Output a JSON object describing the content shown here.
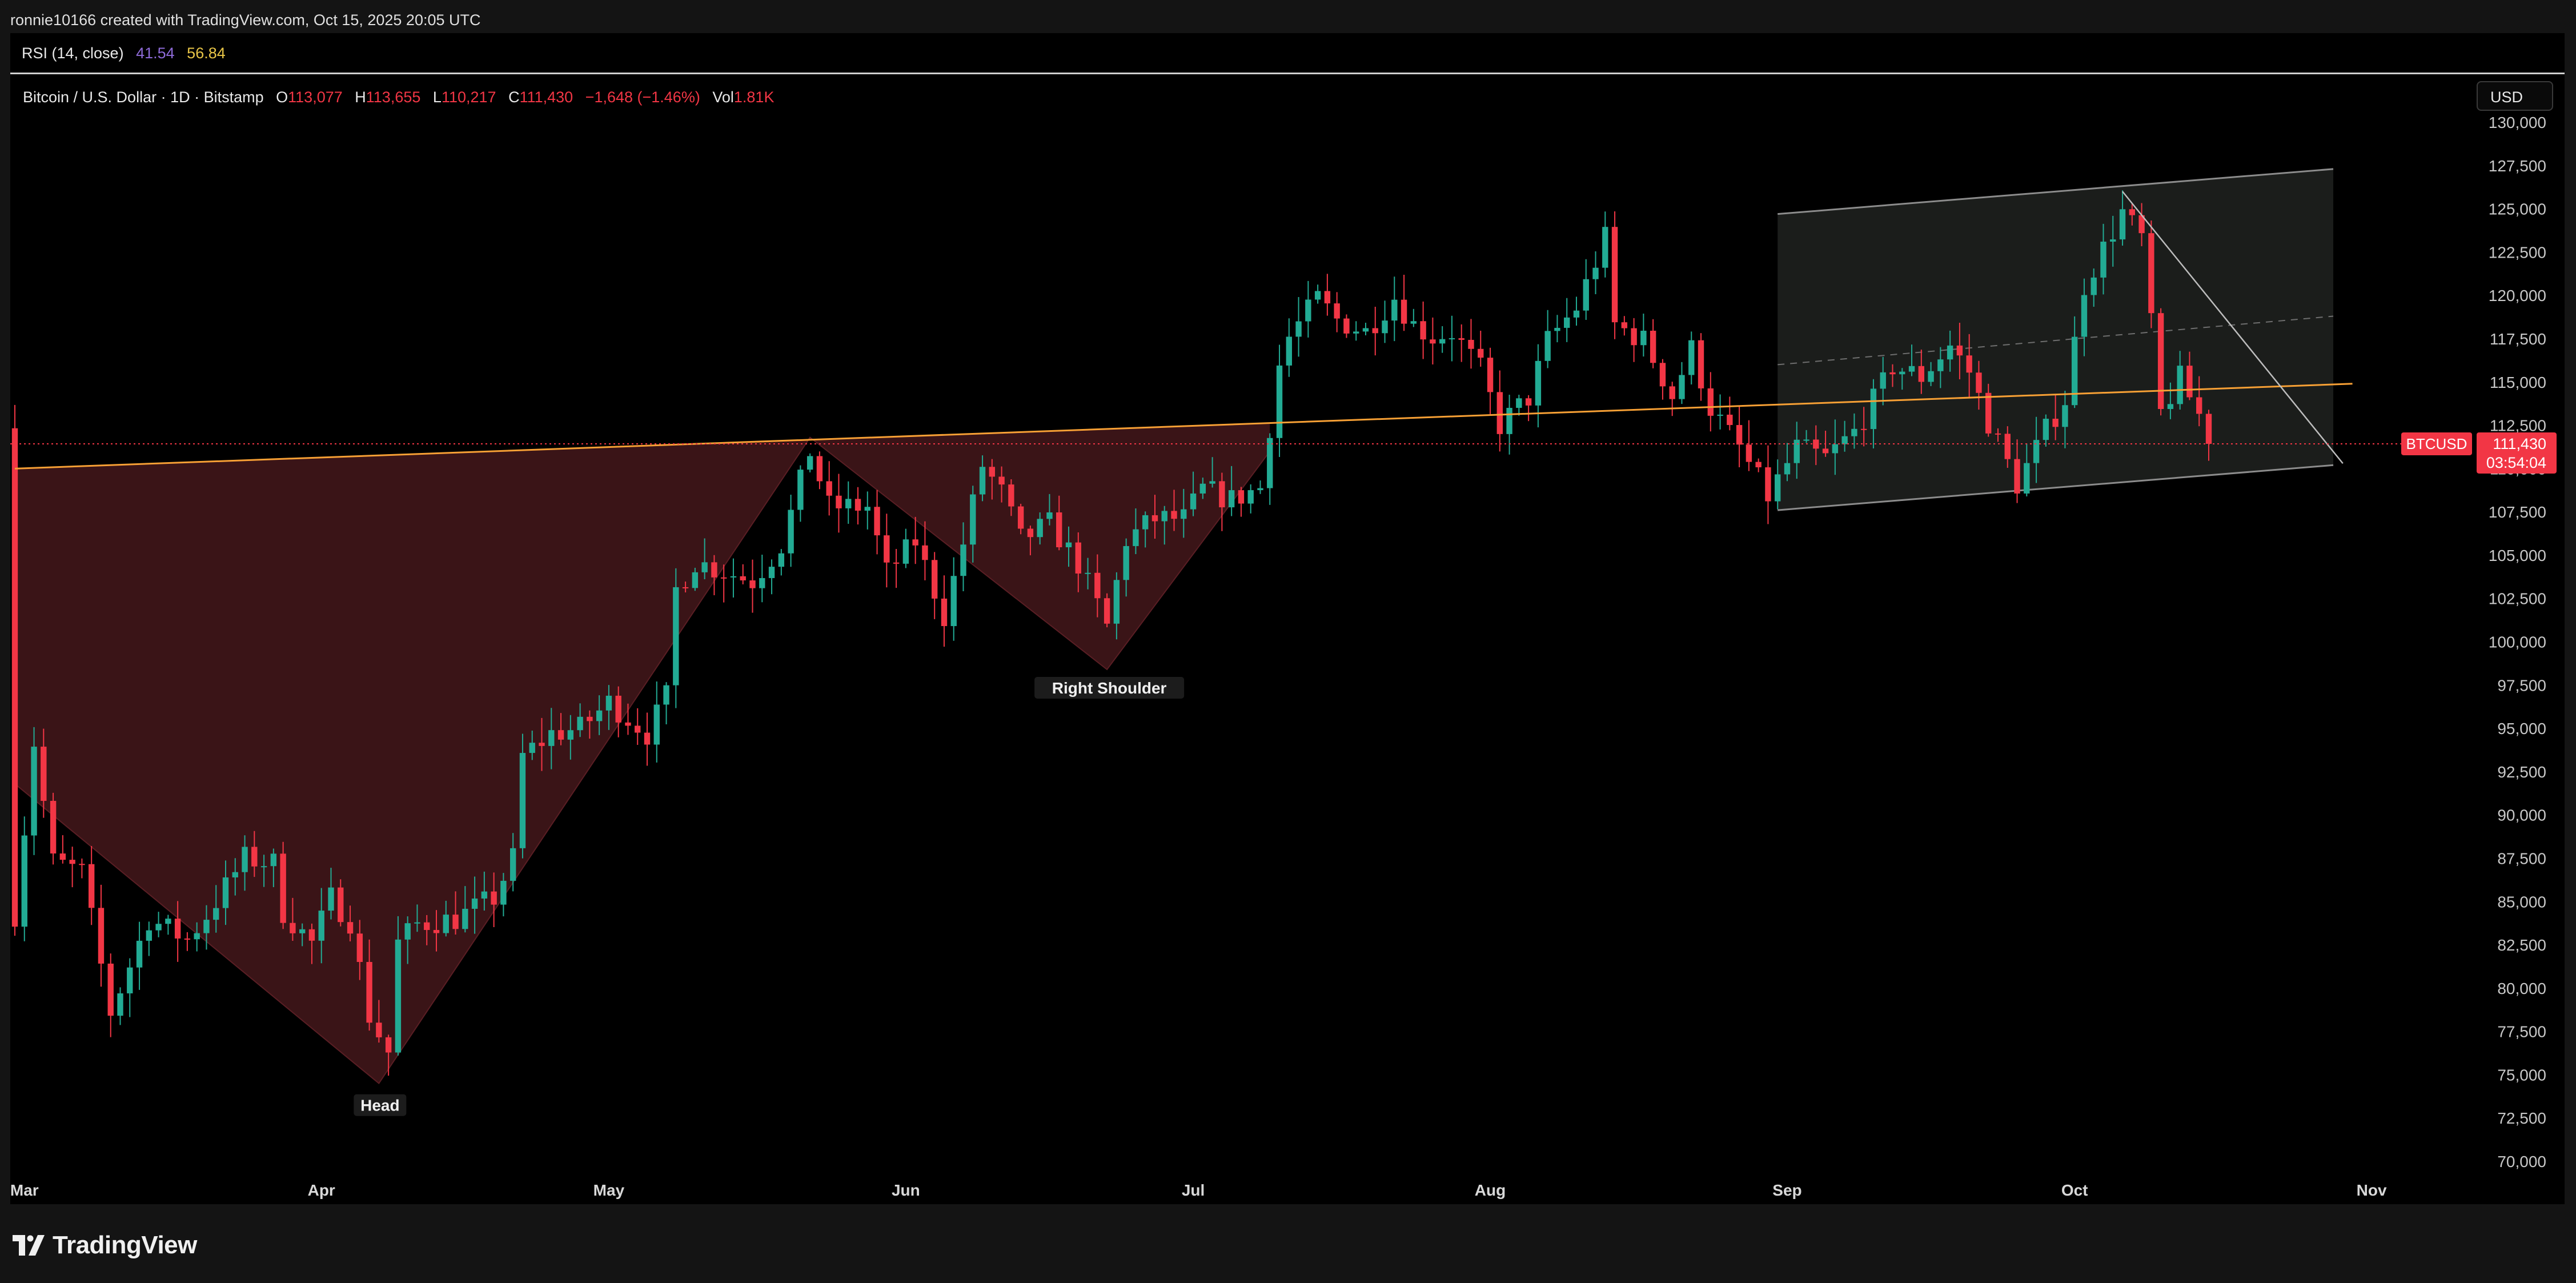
{
  "header": {
    "credit": "ronnie10166 created with TradingView.com, Oct 15, 2025 20:05 UTC"
  },
  "rsi": {
    "name": "RSI (14, close)",
    "value1": "41.54",
    "value2": "56.84"
  },
  "legend": {
    "symbol": "Bitcoin / U.S. Dollar · 1D · Bitstamp",
    "o_label": "O",
    "o_value": "113,077",
    "h_label": "H",
    "h_value": "113,655",
    "l_label": "L",
    "l_value": "110,217",
    "c_label": "C",
    "c_value": "111,430",
    "change": "−1,648 (−1.46%)",
    "vol_label": "Vol",
    "vol_value": "1.81K"
  },
  "currency_button": "USD",
  "price_tag": {
    "symbol": "BTCUSD",
    "price": "111,430",
    "countdown": "03:54:04"
  },
  "annotations": {
    "head": "Head",
    "right_shoulder": "Right Shoulder"
  },
  "brand": {
    "name": "TradingView"
  },
  "colors": {
    "up": "#22ab94",
    "down": "#f23645",
    "neckline": "#f7a035",
    "pattern_fill": "#3a1417",
    "channel_fill": "#1b1d1b",
    "background": "#000000"
  },
  "chart_data": {
    "type": "candlestick",
    "symbol": "BTCUSD",
    "interval": "1D",
    "y_ticks": [
      70000,
      72500,
      75000,
      77500,
      80000,
      82500,
      85000,
      87500,
      90000,
      92500,
      95000,
      97500,
      100000,
      102500,
      105000,
      107500,
      110000,
      112500,
      115000,
      117500,
      120000,
      122500,
      125000,
      127500,
      130000
    ],
    "x_ticks": [
      "Mar",
      "Apr",
      "May",
      "Jun",
      "Jul",
      "Aug",
      "Sep",
      "Oct",
      "Nov"
    ],
    "x_range": [
      "2025-02-28",
      "2025-11-06"
    ],
    "ylim": [
      68500,
      130500
    ],
    "last_price": 111430,
    "closes": [
      {
        "date": "2025-02-28",
        "close": 84300
      },
      {
        "date": "2025-03-02",
        "close": 94200
      },
      {
        "date": "2025-03-04",
        "close": 87300
      },
      {
        "date": "2025-03-07",
        "close": 86700
      },
      {
        "date": "2025-03-10",
        "close": 78600
      },
      {
        "date": "2025-03-14",
        "close": 84000
      },
      {
        "date": "2025-03-18",
        "close": 82800
      },
      {
        "date": "2025-03-20",
        "close": 84200
      },
      {
        "date": "2025-03-24",
        "close": 87500
      },
      {
        "date": "2025-03-27",
        "close": 87200
      },
      {
        "date": "2025-03-28",
        "close": 84400
      },
      {
        "date": "2025-03-31",
        "close": 82600
      },
      {
        "date": "2025-04-02",
        "close": 85200
      },
      {
        "date": "2025-04-04",
        "close": 83900
      },
      {
        "date": "2025-04-06",
        "close": 78400
      },
      {
        "date": "2025-04-08",
        "close": 76300
      },
      {
        "date": "2025-04-09",
        "close": 82600
      },
      {
        "date": "2025-04-11",
        "close": 83700
      },
      {
        "date": "2025-04-15",
        "close": 84000
      },
      {
        "date": "2025-04-19",
        "close": 85200
      },
      {
        "date": "2025-04-21",
        "close": 87500
      },
      {
        "date": "2025-04-22",
        "close": 93400
      },
      {
        "date": "2025-04-25",
        "close": 94700
      },
      {
        "date": "2025-04-28",
        "close": 95000
      },
      {
        "date": "2025-05-01",
        "close": 96500
      },
      {
        "date": "2025-05-05",
        "close": 94700
      },
      {
        "date": "2025-05-07",
        "close": 96800
      },
      {
        "date": "2025-05-08",
        "close": 103000
      },
      {
        "date": "2025-05-10",
        "close": 104600
      },
      {
        "date": "2025-05-13",
        "close": 104100
      },
      {
        "date": "2025-05-16",
        "close": 103500
      },
      {
        "date": "2025-05-19",
        "close": 105600
      },
      {
        "date": "2025-05-22",
        "close": 111000
      },
      {
        "date": "2025-05-24",
        "close": 107800
      },
      {
        "date": "2025-05-28",
        "close": 107800
      },
      {
        "date": "2025-05-30",
        "close": 104000
      },
      {
        "date": "2025-06-02",
        "close": 105800
      },
      {
        "date": "2025-06-05",
        "close": 101500
      },
      {
        "date": "2025-06-07",
        "close": 105700
      },
      {
        "date": "2025-06-09",
        "close": 110200
      },
      {
        "date": "2025-06-11",
        "close": 108600
      },
      {
        "date": "2025-06-13",
        "close": 105900
      },
      {
        "date": "2025-06-16",
        "close": 106800
      },
      {
        "date": "2025-06-19",
        "close": 104500
      },
      {
        "date": "2025-06-22",
        "close": 100900
      },
      {
        "date": "2025-06-24",
        "close": 105900
      },
      {
        "date": "2025-06-27",
        "close": 107100
      },
      {
        "date": "2025-06-30",
        "close": 107100
      },
      {
        "date": "2025-07-02",
        "close": 108800
      },
      {
        "date": "2025-07-05",
        "close": 108200
      },
      {
        "date": "2025-07-08",
        "close": 108900
      },
      {
        "date": "2025-07-10",
        "close": 116000
      },
      {
        "date": "2025-07-11",
        "close": 117600
      },
      {
        "date": "2025-07-14",
        "close": 119800
      },
      {
        "date": "2025-07-16",
        "close": 118600
      },
      {
        "date": "2025-07-19",
        "close": 117900
      },
      {
        "date": "2025-07-22",
        "close": 119900
      },
      {
        "date": "2025-07-24",
        "close": 118300
      },
      {
        "date": "2025-07-26",
        "close": 117600
      },
      {
        "date": "2025-07-28",
        "close": 117900
      },
      {
        "date": "2025-07-31",
        "close": 115700
      },
      {
        "date": "2025-08-02",
        "close": 112500
      },
      {
        "date": "2025-08-05",
        "close": 114100
      },
      {
        "date": "2025-08-07",
        "close": 117400
      },
      {
        "date": "2025-08-10",
        "close": 119300
      },
      {
        "date": "2025-08-13",
        "close": 123300
      },
      {
        "date": "2025-08-14",
        "close": 118300
      },
      {
        "date": "2025-08-17",
        "close": 117400
      },
      {
        "date": "2025-08-20",
        "close": 114200
      },
      {
        "date": "2025-08-22",
        "close": 116900
      },
      {
        "date": "2025-08-24",
        "close": 113500
      },
      {
        "date": "2025-08-27",
        "close": 111200
      },
      {
        "date": "2025-08-30",
        "close": 108400
      },
      {
        "date": "2025-09-02",
        "close": 111200
      },
      {
        "date": "2025-09-05",
        "close": 110600
      },
      {
        "date": "2025-09-08",
        "close": 112100
      },
      {
        "date": "2025-09-10",
        "close": 113900
      },
      {
        "date": "2025-09-12",
        "close": 115900
      },
      {
        "date": "2025-09-15",
        "close": 115300
      },
      {
        "date": "2025-09-18",
        "close": 117100
      },
      {
        "date": "2025-09-20",
        "close": 115600
      },
      {
        "date": "2025-09-22",
        "close": 112700
      },
      {
        "date": "2025-09-25",
        "close": 109100
      },
      {
        "date": "2025-09-28",
        "close": 112200
      },
      {
        "date": "2025-09-30",
        "close": 114000
      },
      {
        "date": "2025-10-02",
        "close": 120600
      },
      {
        "date": "2025-10-06",
        "close": 124800
      },
      {
        "date": "2025-10-08",
        "close": 123300
      },
      {
        "date": "2025-10-10",
        "close": 113200
      },
      {
        "date": "2025-10-12",
        "close": 115200
      },
      {
        "date": "2025-10-14",
        "close": 113100
      },
      {
        "date": "2025-10-15",
        "close": 111430
      }
    ],
    "drawings": {
      "neckline": {
        "start": [
          "2025-02-28",
          110000
        ],
        "end": [
          "2025-10-30",
          114900
        ]
      },
      "inverse_head_and_shoulders": [
        [
          "2025-02-28",
          91800
        ],
        [
          "2025-04-07",
          74500
        ],
        [
          "2025-05-22",
          111800
        ],
        [
          "2025-06-22",
          98400
        ],
        [
          "2025-07-09",
          111000
        ]
      ],
      "channel_upper": {
        "start": [
          "2025-08-31",
          124700
        ],
        "end": [
          "2025-10-28",
          127300
        ]
      },
      "channel_mid": {
        "start": [
          "2025-08-31",
          116000
        ],
        "end": [
          "2025-10-28",
          118800
        ]
      },
      "channel_lower": {
        "start": [
          "2025-08-31",
          107600
        ],
        "end": [
          "2025-10-28",
          110200
        ]
      },
      "trend_line": {
        "start": [
          "2025-10-06",
          126000
        ],
        "end": [
          "2025-10-29",
          110300
        ]
      }
    }
  }
}
